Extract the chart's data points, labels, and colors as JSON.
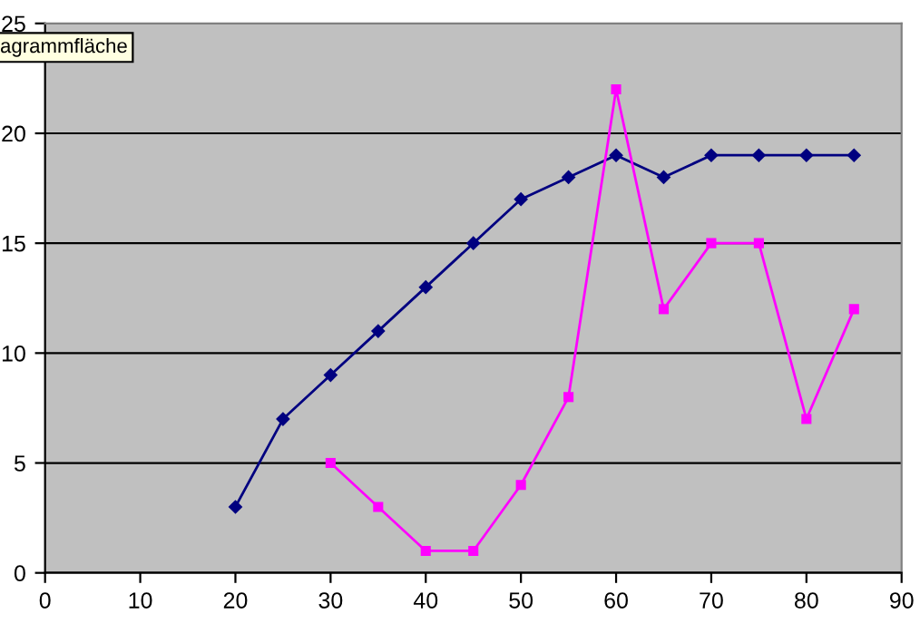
{
  "chart_data": {
    "type": "line",
    "xlim": [
      0,
      90
    ],
    "xticks": [
      0,
      10,
      20,
      30,
      40,
      50,
      60,
      70,
      80,
      90
    ],
    "ylim": [
      0,
      25
    ],
    "yticks": [
      0,
      5,
      10,
      15,
      20,
      25
    ],
    "grid": "y",
    "legend": false,
    "line_style": "solid",
    "annotations": [
      "agrammfläche"
    ],
    "series": [
      {
        "color": "#000080",
        "marker": "diamond",
        "x": [
          20,
          25,
          30,
          35,
          40,
          45,
          50,
          55,
          60,
          65,
          70,
          75,
          80,
          85
        ],
        "values": [
          3,
          7,
          9,
          11,
          13,
          15,
          17,
          18,
          19,
          18,
          19,
          19,
          19,
          19
        ]
      },
      {
        "color": "#ff00ff",
        "marker": "square",
        "x": [
          30,
          35,
          40,
          45,
          50,
          55,
          60,
          65,
          70,
          75,
          80,
          85
        ],
        "values": [
          5,
          3,
          1,
          1,
          4,
          8,
          22,
          12,
          15,
          15,
          7,
          12
        ]
      }
    ]
  }
}
